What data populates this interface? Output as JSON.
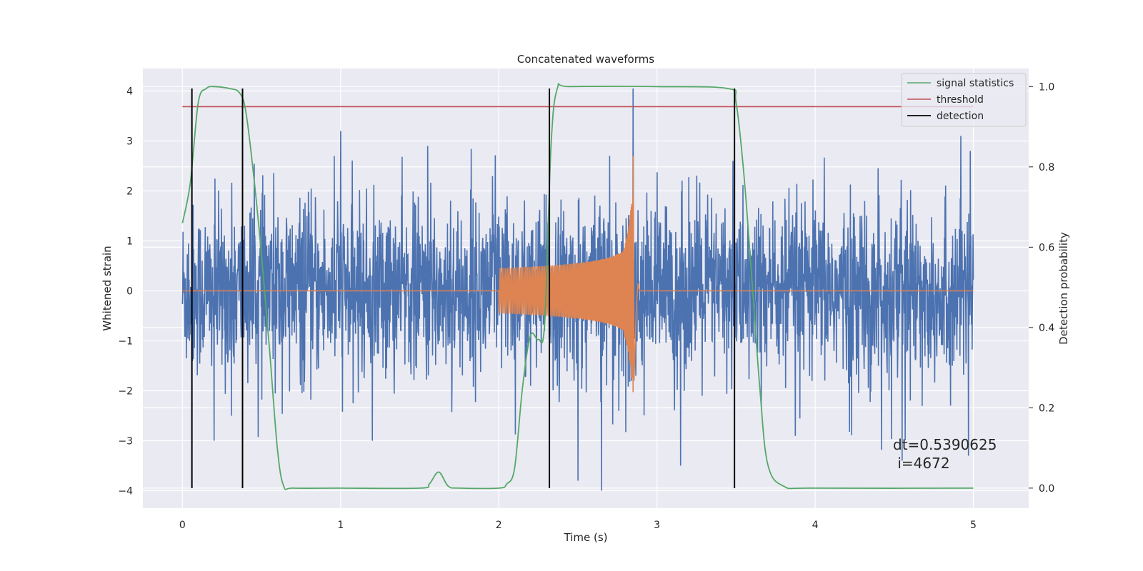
{
  "chart_data": {
    "type": "line",
    "title": "Concatenated waveforms",
    "xlabel": "Time (s)",
    "ylabel": "Whitened strain",
    "y2label": "Detection probability",
    "xlim": [
      -0.25,
      5.35
    ],
    "ylim": [
      -4.35,
      4.45
    ],
    "y2lim": [
      -0.05,
      1.045
    ],
    "xticks": [
      0,
      1,
      2,
      3,
      4,
      5
    ],
    "yticks": [
      -4,
      -3,
      -2,
      -1,
      0,
      1,
      2,
      3,
      4
    ],
    "y2ticks": [
      0.0,
      0.2,
      0.4,
      0.6,
      0.8,
      1.0
    ],
    "grid": true,
    "legend_position": "top-right",
    "legend": [
      {
        "label": "signal statistics",
        "color": "#55a868"
      },
      {
        "label": "threshold",
        "color": "#c44e52"
      },
      {
        "label": "detection",
        "color": "#000000"
      }
    ],
    "annotation": [
      "dt=0.5390625",
      " i=4672"
    ],
    "colors": {
      "noise": "#4c72b0",
      "chirp": "#dd8452",
      "statistic": "#55a868",
      "threshold": "#c44e52",
      "detection": "#000000"
    },
    "series": [
      {
        "kind": "noise",
        "x_range": [
          0,
          5
        ],
        "envelope_abs_max_approx": 3.2,
        "spikes": [
          [
            0.06,
            -1.8
          ],
          [
            0.2,
            -3.0
          ],
          [
            0.31,
            -2.5
          ],
          [
            1.0,
            3.2
          ],
          [
            1.2,
            -3.0
          ],
          [
            1.55,
            2.9
          ],
          [
            2.2,
            -1.9
          ],
          [
            2.85,
            4.05
          ],
          [
            2.65,
            -4.0
          ],
          [
            2.5,
            -3.8
          ],
          [
            3.15,
            -3.5
          ],
          [
            4.55,
            -3.4
          ],
          [
            4.97,
            -3.3
          ],
          [
            4.98,
            2.8
          ]
        ]
      },
      {
        "kind": "chirp",
        "x_range": [
          2.0,
          2.87
        ],
        "amplitude_start": 0.45,
        "peak": [
          2.85,
          2.7
        ],
        "trough": [
          2.85,
          -1.8
        ]
      },
      {
        "name": "signal statistics",
        "axis": "right",
        "x": [
          0.0,
          0.05,
          0.1,
          0.15,
          0.2,
          0.3,
          0.36,
          0.4,
          0.45,
          0.5,
          0.55,
          0.6,
          0.64,
          0.7,
          1.0,
          1.5,
          1.56,
          1.62,
          1.68,
          1.75,
          2.0,
          2.05,
          2.1,
          2.15,
          2.2,
          2.25,
          2.29,
          2.33,
          2.37,
          2.45,
          3.0,
          3.45,
          3.5,
          3.55,
          3.6,
          3.65,
          3.7,
          3.8,
          4.0,
          5.0
        ],
        "y": [
          0.66,
          0.76,
          0.96,
          0.995,
          1.0,
          0.995,
          0.985,
          0.94,
          0.78,
          0.58,
          0.35,
          0.1,
          0.005,
          0.0,
          0.0,
          0.0,
          0.01,
          0.04,
          0.005,
          0.0,
          0.0,
          0.01,
          0.05,
          0.25,
          0.38,
          0.37,
          0.41,
          0.85,
          0.995,
          1.0,
          1.0,
          0.995,
          0.96,
          0.78,
          0.52,
          0.25,
          0.06,
          0.005,
          0.0,
          0.0
        ]
      },
      {
        "name": "threshold",
        "axis": "right",
        "x": [
          0,
          5
        ],
        "y": [
          0.95,
          0.95
        ]
      },
      {
        "name": "detection",
        "axis": "left",
        "x_positions": [
          0.06,
          0.38,
          2.32,
          3.49
        ],
        "y_range": [
          -3.95,
          4.05
        ]
      }
    ]
  }
}
